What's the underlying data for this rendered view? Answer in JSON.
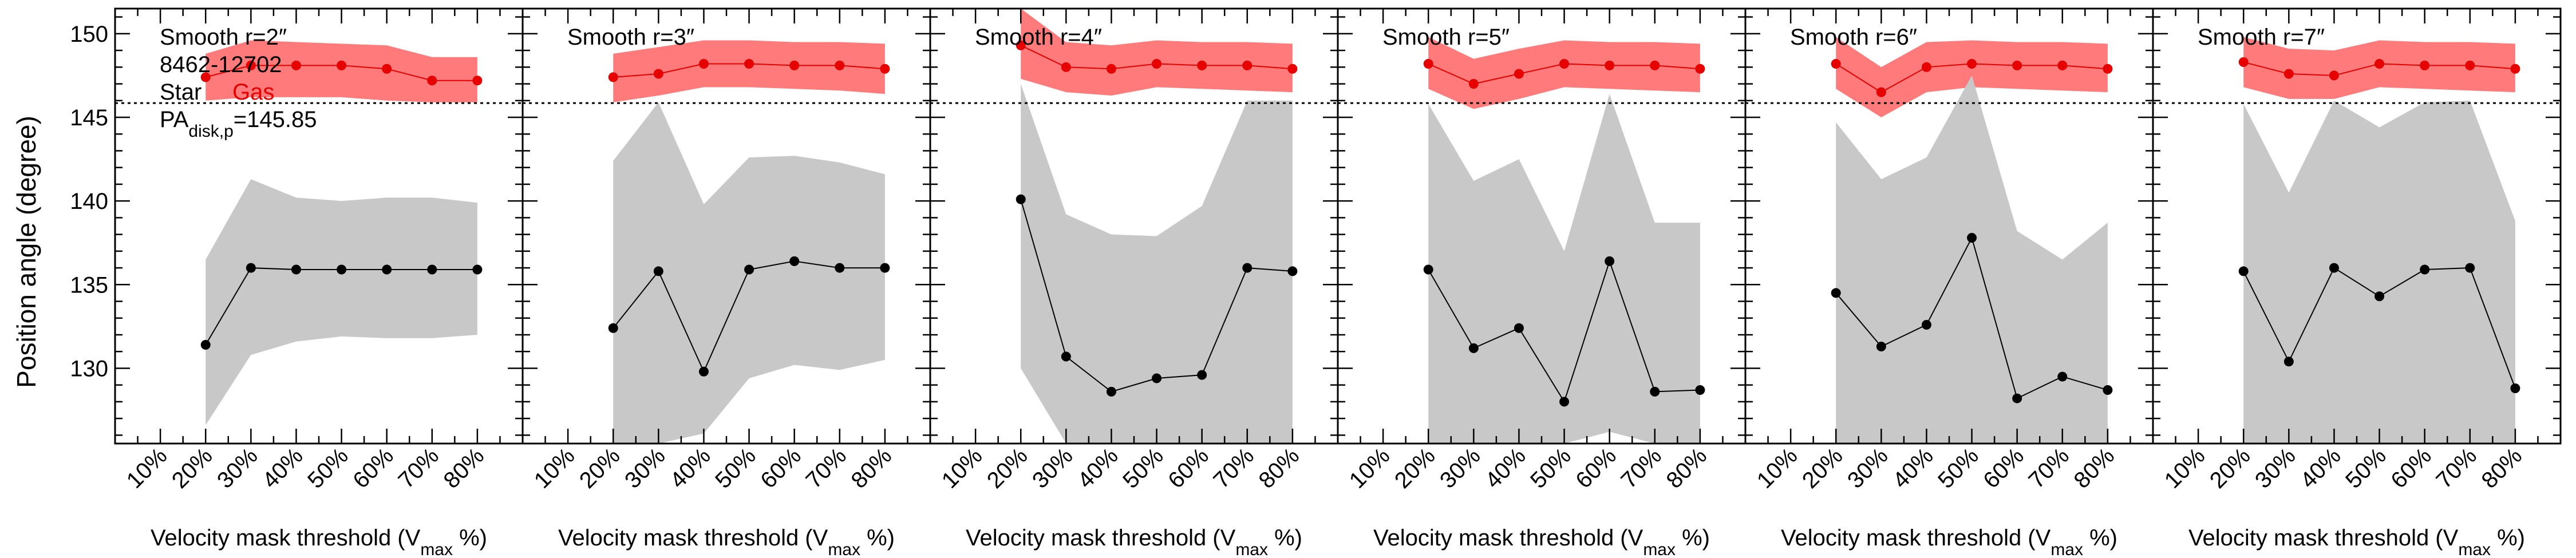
{
  "figure": {
    "ylabel": "Position angle (degree)",
    "xlabel_main": "Velocity mask threshold (V",
    "xlabel_sub": "max",
    "xlabel_end": " %)",
    "pa_label_main": "PA",
    "pa_label_sub": "disk,p",
    "pa_label_end": "=145.85",
    "galaxy_id": "8462-12702",
    "legend_star": "Star",
    "legend_gas": "Gas",
    "x_ticklabels": [
      "10%",
      "20%",
      "30%",
      "40%",
      "50%",
      "60%",
      "70%",
      "80%"
    ],
    "y_ticklabels": [
      "130",
      "135",
      "140",
      "145",
      "150"
    ],
    "colors": {
      "gas_band": "#ff7b7b",
      "gas_line": "#e60000",
      "star_band": "#c8c8c8",
      "star_line": "#000000",
      "pa_line": "#000000"
    }
  },
  "chart_data": [
    {
      "type": "line",
      "title": "Smooth r=2″",
      "x": [
        20,
        30,
        40,
        50,
        60,
        70,
        80
      ],
      "xlim": [
        0,
        90
      ],
      "ylim": [
        125.5,
        151.5
      ],
      "pa_disk": 145.85,
      "series": [
        {
          "name": "Gas",
          "y": [
            147.4,
            148.1,
            148.1,
            148.1,
            147.9,
            147.2,
            147.2
          ],
          "lower": [
            146.0,
            146.2,
            146.2,
            146.2,
            146.0,
            145.9,
            145.9
          ],
          "upper": [
            148.8,
            149.6,
            149.5,
            149.4,
            149.3,
            148.6,
            148.6
          ]
        },
        {
          "name": "Star",
          "y": [
            131.4,
            136.0,
            135.9,
            135.9,
            135.9,
            135.9,
            135.9
          ],
          "lower": [
            126.6,
            130.8,
            131.6,
            131.9,
            131.8,
            131.8,
            132.0
          ],
          "upper": [
            136.5,
            141.3,
            140.2,
            140.0,
            140.2,
            140.2,
            139.9
          ]
        }
      ]
    },
    {
      "type": "line",
      "title": "Smooth r=3″",
      "x": [
        20,
        30,
        40,
        50,
        60,
        70,
        80
      ],
      "xlim": [
        0,
        90
      ],
      "ylim": [
        125.5,
        151.5
      ],
      "pa_disk": 145.85,
      "series": [
        {
          "name": "Gas",
          "y": [
            147.4,
            147.6,
            148.2,
            148.2,
            148.1,
            148.1,
            147.9
          ],
          "lower": [
            145.9,
            146.3,
            146.8,
            146.8,
            146.7,
            146.6,
            146.4
          ],
          "upper": [
            148.8,
            149.2,
            149.6,
            149.6,
            149.5,
            149.5,
            149.4
          ]
        },
        {
          "name": "Star",
          "y": [
            132.4,
            135.8,
            129.8,
            135.9,
            136.4,
            136.0,
            136.0
          ],
          "lower": [
            125.5,
            125.5,
            126.1,
            129.4,
            130.2,
            129.9,
            130.5
          ],
          "upper": [
            142.4,
            145.9,
            139.8,
            142.6,
            142.7,
            142.3,
            141.6
          ]
        }
      ]
    },
    {
      "type": "line",
      "title": "Smooth r=4″",
      "x": [
        20,
        30,
        40,
        50,
        60,
        70,
        80
      ],
      "xlim": [
        0,
        90
      ],
      "ylim": [
        125.5,
        151.5
      ],
      "pa_disk": 145.85,
      "series": [
        {
          "name": "Gas",
          "y": [
            149.3,
            148.0,
            147.9,
            148.2,
            148.1,
            148.1,
            147.9
          ],
          "lower": [
            147.3,
            146.5,
            146.3,
            146.8,
            146.7,
            146.6,
            146.5
          ],
          "upper": [
            151.5,
            149.5,
            149.3,
            149.6,
            149.5,
            149.5,
            149.4
          ]
        },
        {
          "name": "Star",
          "y": [
            140.1,
            130.7,
            128.6,
            129.4,
            129.6,
            136.0,
            135.8
          ],
          "lower": [
            130.0,
            125.5,
            125.5,
            125.5,
            125.5,
            125.5,
            125.5
          ],
          "upper": [
            147.0,
            139.2,
            138.0,
            137.9,
            139.7,
            146.0,
            146.0
          ]
        }
      ]
    },
    {
      "type": "line",
      "title": "Smooth r=5″",
      "x": [
        20,
        30,
        40,
        50,
        60,
        70,
        80
      ],
      "xlim": [
        0,
        90
      ],
      "ylim": [
        125.5,
        151.5
      ],
      "pa_disk": 145.85,
      "series": [
        {
          "name": "Gas",
          "y": [
            148.2,
            147.0,
            147.6,
            148.2,
            148.1,
            148.1,
            147.9
          ],
          "lower": [
            146.7,
            145.5,
            146.1,
            146.8,
            146.7,
            146.6,
            146.5
          ],
          "upper": [
            149.8,
            148.5,
            149.1,
            149.6,
            149.5,
            149.5,
            149.4
          ]
        },
        {
          "name": "Star",
          "y": [
            135.9,
            131.2,
            132.4,
            128.0,
            136.4,
            128.6,
            128.7
          ],
          "lower": [
            125.5,
            125.5,
            125.5,
            125.5,
            126.2,
            125.5,
            125.5
          ],
          "upper": [
            145.8,
            141.2,
            142.5,
            137.0,
            146.4,
            138.7,
            138.7
          ]
        }
      ]
    },
    {
      "type": "line",
      "title": "Smooth r=6″",
      "x": [
        20,
        30,
        40,
        50,
        60,
        70,
        80
      ],
      "xlim": [
        0,
        90
      ],
      "ylim": [
        125.5,
        151.5
      ],
      "pa_disk": 145.85,
      "series": [
        {
          "name": "Gas",
          "y": [
            148.2,
            146.5,
            148.0,
            148.2,
            148.1,
            148.1,
            147.9
          ],
          "lower": [
            146.7,
            145.0,
            146.5,
            146.8,
            146.7,
            146.6,
            146.5
          ],
          "upper": [
            149.8,
            148.0,
            149.5,
            149.6,
            149.5,
            149.5,
            149.4
          ]
        },
        {
          "name": "Star",
          "y": [
            134.5,
            131.3,
            132.6,
            137.8,
            128.2,
            129.5,
            128.7
          ],
          "lower": [
            125.5,
            125.5,
            125.5,
            125.5,
            125.5,
            125.5,
            125.5
          ],
          "upper": [
            144.7,
            141.3,
            142.6,
            147.5,
            138.2,
            136.5,
            138.7
          ]
        }
      ]
    },
    {
      "type": "line",
      "title": "Smooth r=7″",
      "x": [
        20,
        30,
        40,
        50,
        60,
        70,
        80
      ],
      "xlim": [
        0,
        90
      ],
      "ylim": [
        125.5,
        151.5
      ],
      "pa_disk": 145.85,
      "series": [
        {
          "name": "Gas",
          "y": [
            148.3,
            147.6,
            147.5,
            148.2,
            148.1,
            148.1,
            147.9
          ],
          "lower": [
            146.8,
            146.1,
            146.1,
            146.8,
            146.7,
            146.6,
            146.5
          ],
          "upper": [
            149.8,
            149.1,
            149.0,
            149.6,
            149.5,
            149.5,
            149.4
          ]
        },
        {
          "name": "Star",
          "y": [
            135.8,
            130.4,
            136.0,
            134.3,
            135.9,
            136.0,
            128.8
          ],
          "lower": [
            125.5,
            125.5,
            125.5,
            125.5,
            125.5,
            125.5,
            125.5
          ],
          "upper": [
            145.8,
            140.5,
            146.0,
            144.4,
            145.9,
            146.0,
            138.8
          ]
        }
      ]
    }
  ]
}
